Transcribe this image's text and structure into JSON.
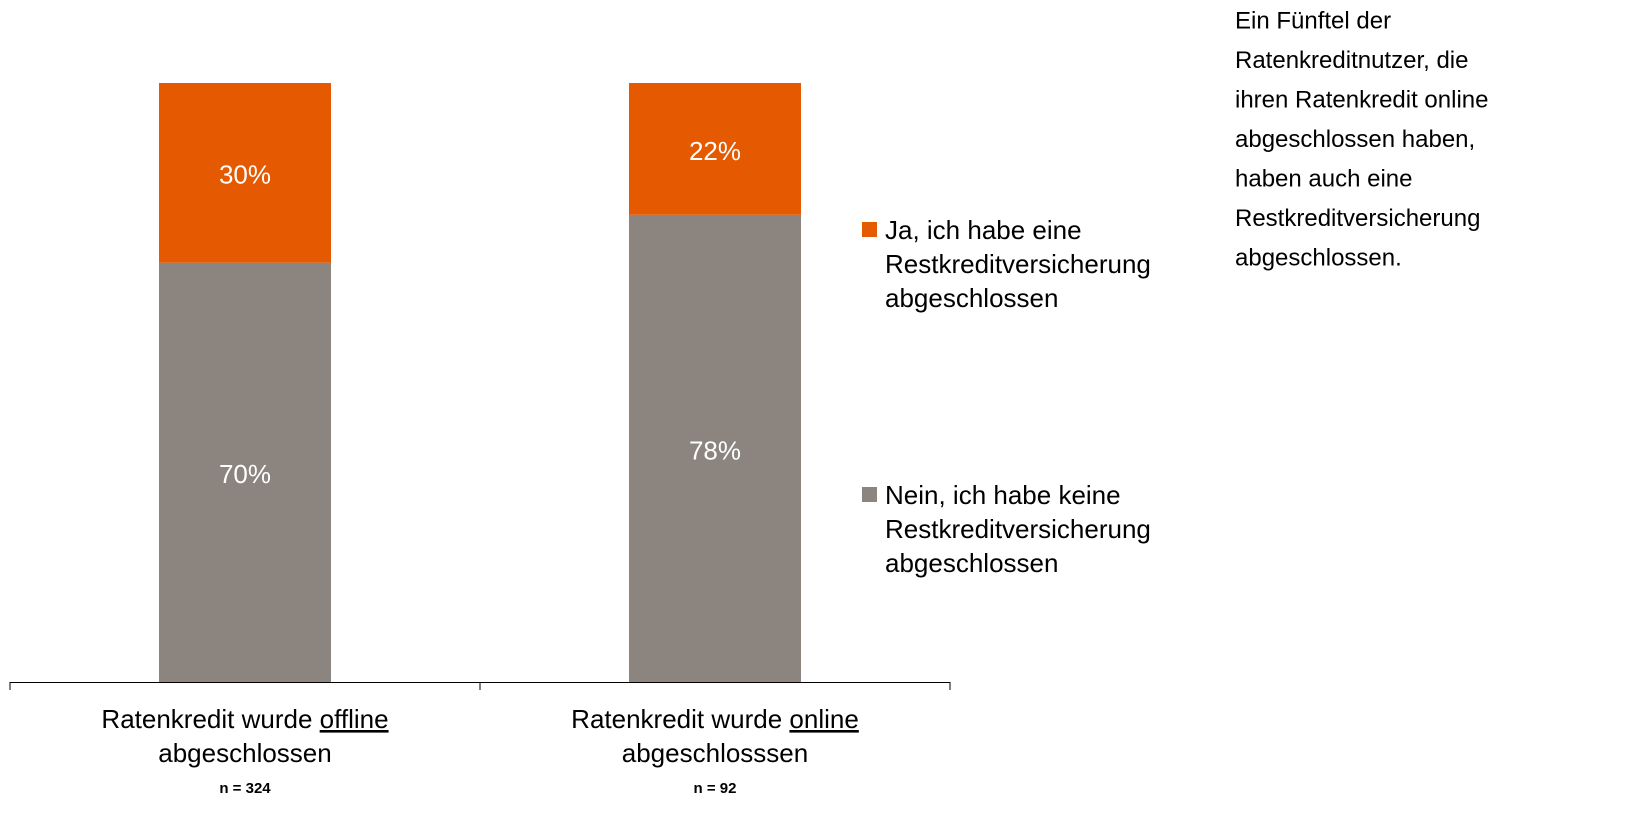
{
  "chart_data": {
    "type": "stacked_bar",
    "categories": [
      {
        "line1": "Ratenkredit wurde",
        "underlined": "offline",
        "line2": "abgeschlossen"
      },
      {
        "line1": "Ratenkredit wurde",
        "underlined": "online",
        "line2": "abgeschlosssen"
      }
    ],
    "sample_sizes": [
      "n = 324",
      "n = 92"
    ],
    "series": [
      {
        "name": "Nein, ich habe keine Restkreditversicherung abgeschlossen",
        "color": "#8c847e",
        "values": [
          70,
          78
        ],
        "value_labels": [
          "70%",
          "78%"
        ]
      },
      {
        "name": "Ja, ich habe eine Restkreditversicherung abgeschlossen",
        "color": "#e55a00",
        "values": [
          30,
          22
        ],
        "value_labels": [
          "30%",
          "22%"
        ]
      }
    ],
    "ylim": [
      0,
      100
    ],
    "legend": "right",
    "annotation": [
      "Ein Fünftel der",
      "Ratenkreditnutzer, die",
      "ihren Ratenkredit online",
      "abgeschlossen haben,",
      "haben auch eine",
      "Restkreditversicherung",
      "abgeschlossen."
    ]
  }
}
